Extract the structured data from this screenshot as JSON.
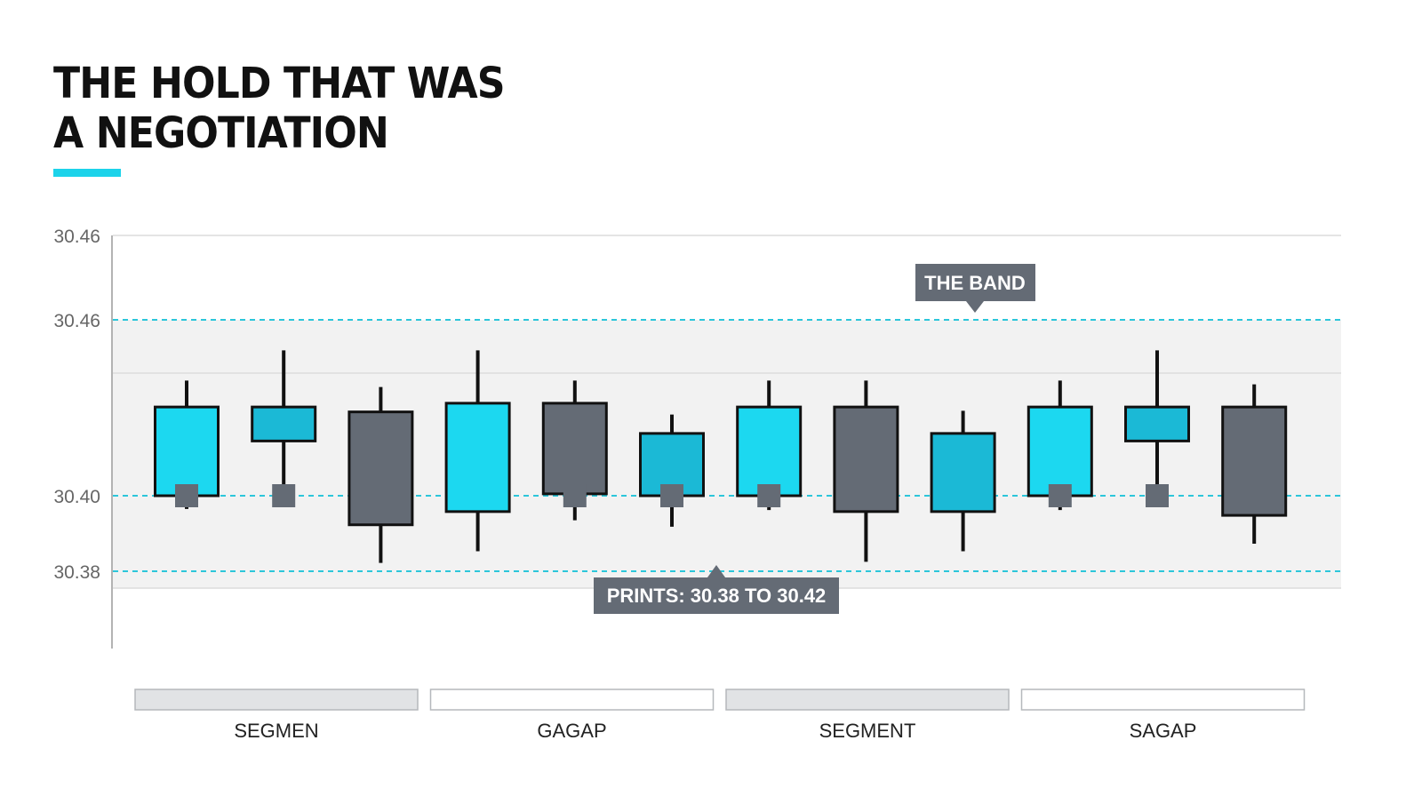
{
  "title_lines": [
    "THE HOLD THAT WAS",
    "A NEGOTIATION"
  ],
  "colors": {
    "accent": "#1cd3ea",
    "up_bright": "#1cd8f0",
    "up_teal": "#1bb9d6",
    "down_gray": "#646b75",
    "band_fill": "#f2f2f2",
    "band_line": "#2cc6da",
    "callout_bg": "#646b75"
  },
  "chart_data": {
    "type": "candlestick",
    "y_tick_labels": [
      "30.46",
      "30.46",
      "30.40",
      "30.38"
    ],
    "band": {
      "low": 30.38,
      "high": 30.42
    },
    "reference_line": 30.4,
    "annotations": {
      "band_label": "THE BAND",
      "range_label": "PRINTS: 30.38 TO 30.42"
    },
    "candles": [
      {
        "open": 30.4,
        "close": 30.4235,
        "high": 30.4305,
        "low": 30.3965,
        "color": "up_bright",
        "marker": 30.4
      },
      {
        "open": 30.4145,
        "close": 30.4235,
        "high": 30.4385,
        "low": 30.4,
        "color": "up_teal",
        "marker": 30.4
      },
      {
        "open": 30.4222,
        "close": 30.3923,
        "high": 30.4288,
        "low": 30.3822,
        "color": "down_gray"
      },
      {
        "open": 30.3958,
        "close": 30.4245,
        "high": 30.4385,
        "low": 30.3853,
        "color": "up_bright"
      },
      {
        "open": 30.4245,
        "close": 30.4005,
        "high": 30.4305,
        "low": 30.3935,
        "color": "down_gray",
        "marker": 30.4
      },
      {
        "open": 30.4,
        "close": 30.4165,
        "high": 30.4215,
        "low": 30.3918,
        "color": "up_teal",
        "marker": 30.4
      },
      {
        "open": 30.4,
        "close": 30.4235,
        "high": 30.4305,
        "low": 30.3962,
        "color": "up_bright",
        "marker": 30.4
      },
      {
        "open": 30.4235,
        "close": 30.3958,
        "high": 30.4305,
        "low": 30.3825,
        "color": "down_gray"
      },
      {
        "open": 30.3958,
        "close": 30.4165,
        "high": 30.4225,
        "low": 30.3853,
        "color": "up_teal"
      },
      {
        "open": 30.4,
        "close": 30.4235,
        "high": 30.4305,
        "low": 30.3962,
        "color": "up_bright",
        "marker": 30.4
      },
      {
        "open": 30.4145,
        "close": 30.4235,
        "high": 30.4385,
        "low": 30.4,
        "color": "up_teal",
        "marker": 30.4
      },
      {
        "open": 30.4235,
        "close": 30.3948,
        "high": 30.4295,
        "low": 30.3873,
        "color": "down_gray"
      }
    ],
    "segments": [
      {
        "label": "SEGMEN",
        "shaded": true
      },
      {
        "label": "GAGAP",
        "shaded": false
      },
      {
        "label": "SEGMENT",
        "shaded": true
      },
      {
        "label": "SAGAP",
        "shaded": false
      }
    ]
  }
}
